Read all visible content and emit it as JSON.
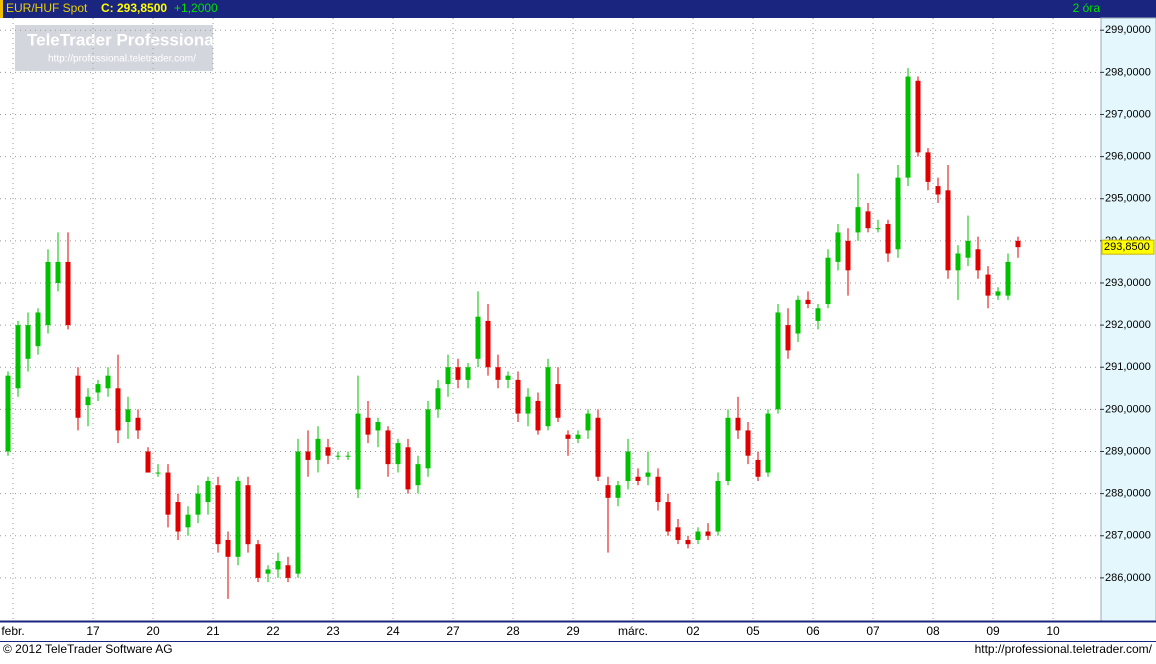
{
  "chart_data": {
    "type": "candlestick",
    "header": {
      "symbol": "EUR/HUF Spot",
      "close": "C: 293,8500",
      "change": "+1,2000",
      "interval": "2 óra"
    },
    "watermark": {
      "title": "TeleTrader Professional",
      "url": "http://professional.teletrader.com/"
    },
    "footer": {
      "copyright": "© 2012 TeleTrader Software AG",
      "url": "http://professional.teletrader.com/"
    },
    "up_color": "#00c000",
    "down_color": "#e00000",
    "grid": true,
    "last_price": {
      "value": 293.85,
      "label": "293,8500"
    },
    "categories": [
      null,
      "febr.",
      null,
      null,
      null,
      null,
      null,
      null,
      null,
      "17",
      null,
      null,
      null,
      null,
      null,
      "20",
      null,
      null,
      null,
      null,
      null,
      "21",
      null,
      null,
      null,
      null,
      null,
      "22",
      null,
      null,
      null,
      null,
      null,
      "23",
      null,
      null,
      null,
      null,
      null,
      "24",
      null,
      null,
      null,
      null,
      null,
      "27",
      null,
      null,
      null,
      null,
      null,
      "28",
      null,
      null,
      null,
      null,
      null,
      "29",
      null,
      null,
      null,
      null,
      null,
      "márc.",
      null,
      null,
      null,
      null,
      null,
      "02",
      null,
      null,
      null,
      null,
      null,
      "05",
      null,
      null,
      null,
      null,
      null,
      "06",
      null,
      null,
      null,
      null,
      null,
      "07",
      null,
      null,
      null,
      null,
      null,
      "08",
      null,
      null,
      null,
      null,
      null,
      "09",
      null,
      null,
      null,
      null,
      null,
      "10"
    ],
    "open": [
      289.0,
      290.5,
      291.2,
      291.5,
      292.0,
      293.0,
      293.5,
      290.8,
      290.1,
      290.4,
      290.5,
      290.5,
      289.7,
      289.8,
      289.0,
      288.5,
      288.5,
      287.8,
      287.2,
      287.5,
      287.8,
      288.2,
      286.9,
      286.5,
      288.2,
      286.8,
      286.1,
      286.2,
      286.3,
      286.1,
      289.0,
      288.8,
      289.1,
      288.9,
      288.9,
      288.1,
      289.8,
      289.5,
      289.5,
      288.7,
      289.1,
      288.2,
      288.6,
      290.0,
      290.6,
      291.0,
      290.7,
      291.2,
      292.1,
      291.0,
      290.7,
      290.7,
      289.9,
      290.2,
      289.6,
      290.6,
      289.4,
      289.3,
      289.5,
      289.8,
      288.2,
      287.9,
      288.3,
      288.4,
      288.4,
      288.4,
      287.8,
      287.2,
      286.9,
      286.9,
      287.1,
      287.1,
      288.3,
      289.8,
      289.5,
      288.8,
      288.5,
      290.0,
      292.0,
      291.8,
      292.6,
      292.1,
      292.5,
      293.5,
      294.0,
      294.2,
      294.7,
      294.3,
      294.4,
      293.8,
      295.5,
      297.8,
      296.1,
      295.3,
      295.2,
      293.3,
      293.6,
      293.8,
      293.2,
      292.7,
      292.7,
      294.0,
      null,
      null,
      null,
      null
    ],
    "high": [
      290.9,
      292.1,
      292.3,
      292.4,
      293.8,
      294.2,
      294.2,
      291.0,
      290.5,
      290.7,
      291.0,
      291.3,
      290.3,
      290.0,
      289.1,
      288.7,
      288.7,
      288.0,
      287.7,
      288.2,
      288.4,
      288.4,
      287.1,
      288.4,
      288.4,
      286.9,
      286.3,
      286.6,
      286.5,
      289.3,
      289.5,
      289.6,
      289.3,
      289.0,
      289.0,
      290.8,
      290.2,
      289.8,
      289.6,
      289.3,
      289.3,
      288.9,
      290.2,
      290.7,
      291.3,
      291.2,
      291.1,
      292.8,
      292.5,
      291.3,
      290.9,
      290.9,
      290.5,
      290.4,
      291.2,
      291.0,
      289.5,
      289.5,
      290.0,
      290.0,
      288.4,
      288.3,
      289.3,
      288.6,
      289.0,
      288.6,
      288.0,
      287.4,
      287.0,
      287.2,
      287.3,
      288.5,
      290.0,
      290.3,
      289.7,
      289.0,
      290.0,
      292.5,
      292.4,
      292.7,
      292.8,
      292.5,
      293.8,
      294.4,
      294.3,
      295.6,
      294.9,
      294.5,
      294.5,
      295.8,
      298.1,
      297.9,
      296.2,
      295.5,
      295.8,
      293.9,
      294.6,
      294.1,
      293.4,
      292.9,
      293.7,
      294.1,
      null,
      null,
      null,
      null
    ],
    "low": [
      288.9,
      290.3,
      290.9,
      291.3,
      291.8,
      292.8,
      291.9,
      289.5,
      289.6,
      290.2,
      290.3,
      289.2,
      289.3,
      289.3,
      288.5,
      288.4,
      287.2,
      286.9,
      287.0,
      287.3,
      287.5,
      286.6,
      285.5,
      286.3,
      286.6,
      285.9,
      285.9,
      286.0,
      285.9,
      286.0,
      288.4,
      288.5,
      288.7,
      288.8,
      288.8,
      287.9,
      289.2,
      289.1,
      288.4,
      288.5,
      288.0,
      288.0,
      288.4,
      289.8,
      290.3,
      290.5,
      290.5,
      291.0,
      290.8,
      290.5,
      290.5,
      289.7,
      289.6,
      289.4,
      289.5,
      289.7,
      288.9,
      289.2,
      289.3,
      288.3,
      286.6,
      287.7,
      288.1,
      288.2,
      288.2,
      287.6,
      287.0,
      286.8,
      286.7,
      286.8,
      286.9,
      287.0,
      288.2,
      289.3,
      288.7,
      288.3,
      288.4,
      289.9,
      291.2,
      291.6,
      292.4,
      291.9,
      292.4,
      293.3,
      292.7,
      294.0,
      294.2,
      294.2,
      293.5,
      293.6,
      295.3,
      296.0,
      295.2,
      294.9,
      293.1,
      292.6,
      293.4,
      293.1,
      292.4,
      292.6,
      292.6,
      293.6,
      null,
      null,
      null,
      null
    ],
    "close": [
      290.8,
      292.0,
      292.0,
      292.3,
      293.5,
      293.5,
      292.0,
      289.8,
      290.3,
      290.6,
      290.8,
      289.5,
      290.0,
      289.5,
      288.5,
      288.5,
      287.5,
      287.1,
      287.5,
      288.0,
      288.3,
      286.8,
      286.5,
      288.3,
      286.8,
      286.0,
      286.2,
      286.4,
      286.0,
      289.0,
      288.8,
      289.3,
      288.9,
      288.9,
      288.9,
      289.9,
      289.4,
      289.7,
      288.7,
      289.2,
      288.1,
      288.7,
      290.0,
      290.5,
      291.0,
      290.7,
      291.0,
      292.2,
      291.0,
      290.7,
      290.8,
      289.9,
      290.3,
      289.5,
      291.0,
      289.8,
      289.3,
      289.4,
      289.9,
      288.4,
      287.9,
      288.2,
      289.0,
      288.3,
      288.5,
      287.8,
      287.1,
      286.9,
      286.8,
      287.1,
      287.0,
      288.3,
      289.8,
      289.5,
      288.9,
      288.4,
      289.9,
      292.3,
      291.4,
      292.6,
      292.5,
      292.4,
      293.6,
      294.2,
      293.3,
      294.8,
      294.3,
      294.3,
      293.7,
      295.5,
      297.9,
      296.1,
      295.4,
      295.1,
      293.3,
      293.7,
      294.0,
      293.3,
      292.7,
      292.8,
      293.5,
      293.85,
      null,
      null,
      null,
      null
    ],
    "ylim": [
      285.0,
      299.29
    ],
    "yticks": [
      {
        "value": 286,
        "label": "286,0000"
      },
      {
        "value": 287,
        "label": "287,0000"
      },
      {
        "value": 288,
        "label": "288,0000"
      },
      {
        "value": 289,
        "label": "289,0000"
      },
      {
        "value": 290,
        "label": "290,0000"
      },
      {
        "value": 291,
        "label": "291,0000"
      },
      {
        "value": 292,
        "label": "292,0000"
      },
      {
        "value": 293,
        "label": "293,0000"
      },
      {
        "value": 294,
        "label": "294,0000"
      },
      {
        "value": 295,
        "label": "295,0000"
      },
      {
        "value": 296,
        "label": "296,0000"
      },
      {
        "value": 297,
        "label": "297,0000"
      },
      {
        "value": 298,
        "label": "298,0000"
      },
      {
        "value": 299,
        "label": "299,0000"
      }
    ]
  }
}
